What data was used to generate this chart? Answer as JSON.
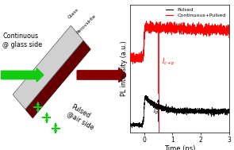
{
  "fig_width": 2.95,
  "fig_height": 1.89,
  "dpi": 100,
  "left_panel": {
    "continuous_text": "Continuous\n@ glass side",
    "pulsed_text": "Pulsed\n@air side",
    "glass_label": "Glass",
    "perovskite_label": "Perovskite",
    "green_color": "#11cc11",
    "dark_red_color": "#880000",
    "slab_light_color": "#d0d0d0",
    "slab_dark_color": "#660000"
  },
  "right_panel": {
    "xlabel": "Time (ns)",
    "ylabel": "PL intensity (a.u.)",
    "xlim": [
      -0.5,
      3.0
    ],
    "xticks": [
      0,
      1,
      2,
      3
    ],
    "legend_pulsed": "Pulsed",
    "legend_cont_pulsed": "Continuous+Pulsed",
    "pulsed_color": "#000000",
    "cont_pulsed_color": "#ff0000",
    "vertical_line_x": 0.5
  }
}
